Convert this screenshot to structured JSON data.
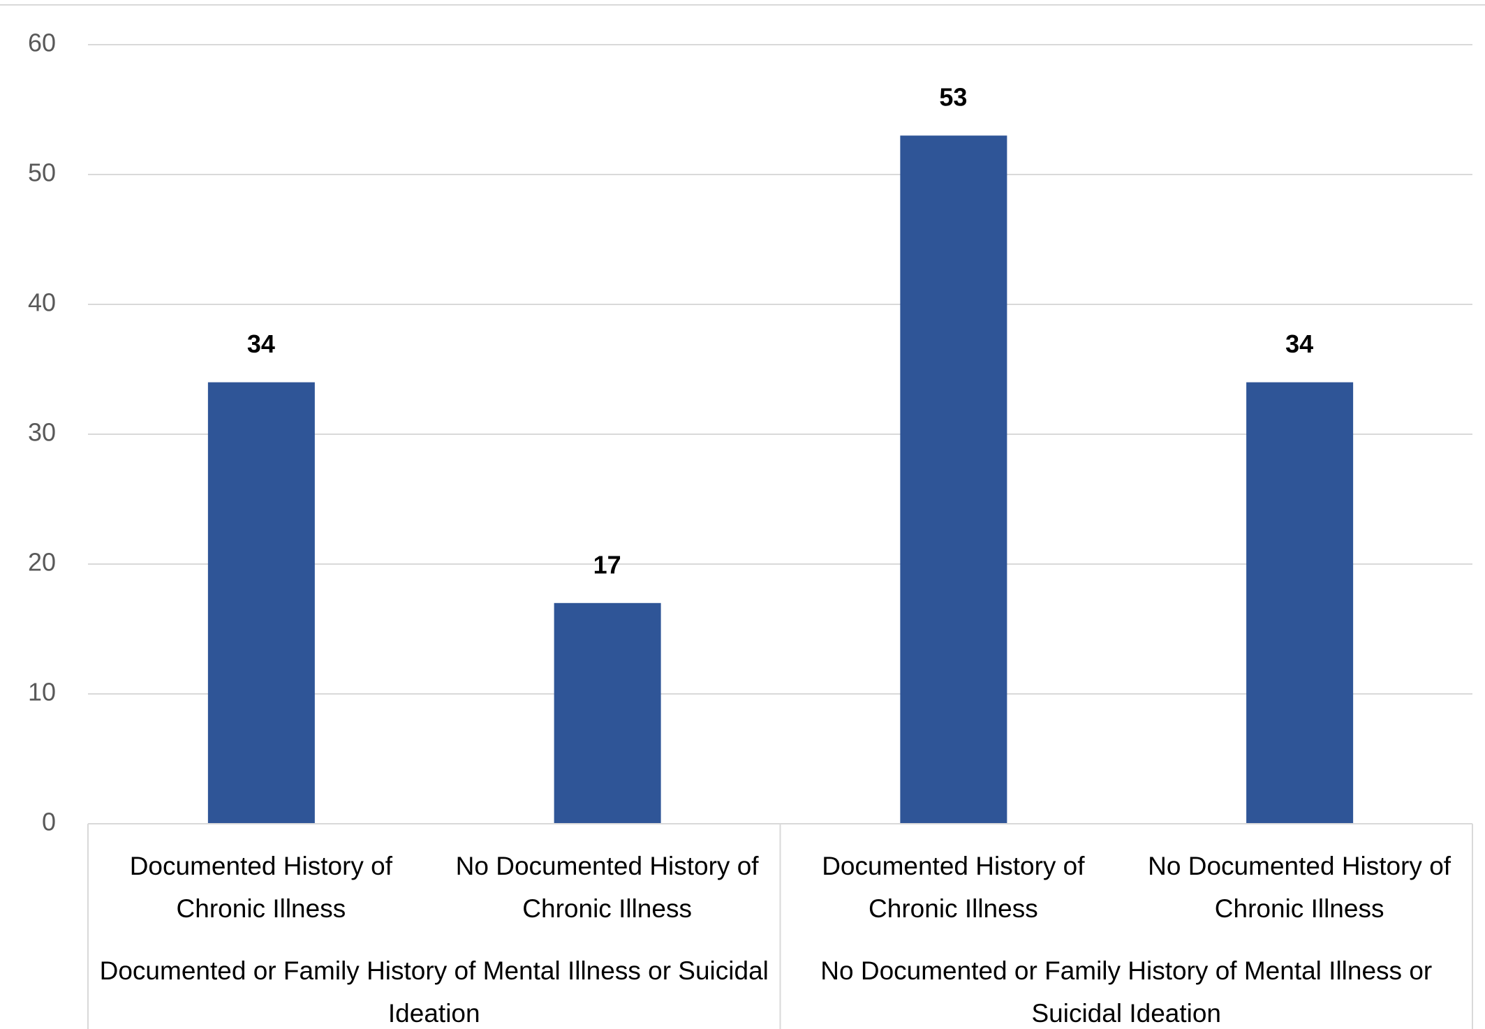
{
  "chart_data": {
    "type": "bar",
    "categories": [
      "Documented History of Chronic Illness",
      "No Documented History of Chronic Illness",
      "Documented History of Chronic Illness",
      "No Documented History of Chronic Illness"
    ],
    "groups": [
      "Documented or Family History of Mental Illness or Suicidal Ideation",
      "No Documented or Family History of Mental Illness or Suicidal Ideation"
    ],
    "values": [
      34,
      17,
      53,
      34
    ],
    "color": "#2f5597",
    "ylim": [
      0,
      60
    ],
    "yticks": [
      0,
      10,
      20,
      30,
      40,
      50,
      60
    ],
    "grid": true
  }
}
